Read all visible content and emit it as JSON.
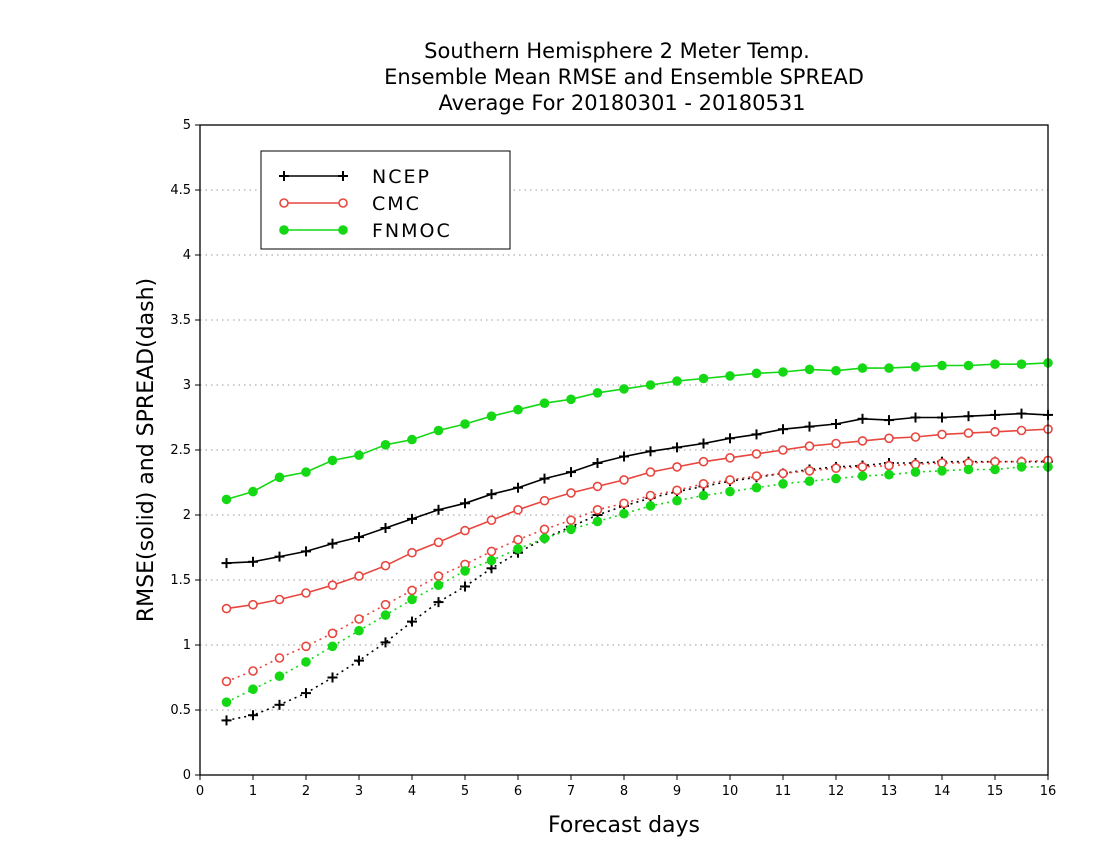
{
  "chart_data": {
    "type": "line",
    "title_lines": [
      "Southern Hemisphere 2 Meter Temp.",
      "Ensemble Mean RMSE and Ensemble SPREAD",
      "Average For 20180301 - 20180531"
    ],
    "xlabel": "Forecast days",
    "ylabel": "RMSE(solid) and SPREAD(dash)",
    "xlim": [
      0,
      16
    ],
    "ylim": [
      0,
      5
    ],
    "xticks": [
      0,
      1,
      2,
      3,
      4,
      5,
      6,
      7,
      8,
      9,
      10,
      11,
      12,
      13,
      14,
      15,
      16
    ],
    "yticks": [
      0,
      0.5,
      1,
      1.5,
      2,
      2.5,
      3,
      3.5,
      4,
      4.5,
      5
    ],
    "ytick_labels": [
      "0",
      "0.5",
      "1",
      "1.5",
      "2",
      "2.5",
      "3",
      "3.5",
      "4",
      "4.5",
      "5"
    ],
    "grid": "horizontal dotted",
    "legend_position": "top-left",
    "x": [
      0.5,
      1,
      1.5,
      2,
      2.5,
      3,
      3.5,
      4,
      4.5,
      5,
      5.5,
      6,
      6.5,
      7,
      7.5,
      8,
      8.5,
      9,
      9.5,
      10,
      10.5,
      11,
      11.5,
      12,
      12.5,
      13,
      13.5,
      14,
      14.5,
      15,
      15.5,
      16
    ],
    "series": [
      {
        "name": "NCEP",
        "color": "#000000",
        "marker": "plus",
        "rmse": [
          1.63,
          1.64,
          1.68,
          1.72,
          1.78,
          1.83,
          1.9,
          1.97,
          2.04,
          2.09,
          2.16,
          2.21,
          2.28,
          2.33,
          2.4,
          2.45,
          2.49,
          2.52,
          2.55,
          2.59,
          2.62,
          2.66,
          2.68,
          2.7,
          2.74,
          2.73,
          2.75,
          2.75,
          2.76,
          2.77,
          2.78,
          2.77
        ],
        "spread": [
          0.42,
          0.46,
          0.54,
          0.63,
          0.75,
          0.88,
          1.02,
          1.18,
          1.33,
          1.45,
          1.59,
          1.71,
          1.82,
          1.91,
          2.0,
          2.07,
          2.13,
          2.18,
          2.22,
          2.26,
          2.29,
          2.32,
          2.35,
          2.37,
          2.38,
          2.4,
          2.4,
          2.41,
          2.41,
          2.41,
          2.41,
          2.41
        ]
      },
      {
        "name": "CMC",
        "color": "#e8463e",
        "marker": "open-circle",
        "rmse": [
          1.28,
          1.31,
          1.35,
          1.4,
          1.46,
          1.53,
          1.61,
          1.71,
          1.79,
          1.88,
          1.96,
          2.04,
          2.11,
          2.17,
          2.22,
          2.27,
          2.33,
          2.37,
          2.41,
          2.44,
          2.47,
          2.5,
          2.53,
          2.55,
          2.57,
          2.59,
          2.6,
          2.62,
          2.63,
          2.64,
          2.65,
          2.66
        ],
        "spread": [
          0.72,
          0.8,
          0.9,
          0.99,
          1.09,
          1.2,
          1.31,
          1.42,
          1.53,
          1.62,
          1.72,
          1.81,
          1.89,
          1.96,
          2.04,
          2.09,
          2.15,
          2.19,
          2.24,
          2.27,
          2.3,
          2.32,
          2.34,
          2.36,
          2.37,
          2.38,
          2.39,
          2.4,
          2.4,
          2.41,
          2.41,
          2.42
        ]
      },
      {
        "name": "FNMOC",
        "color": "#14d814",
        "marker": "filled-circle",
        "rmse": [
          2.12,
          2.18,
          2.29,
          2.33,
          2.42,
          2.46,
          2.54,
          2.58,
          2.65,
          2.7,
          2.76,
          2.81,
          2.86,
          2.89,
          2.94,
          2.97,
          3.0,
          3.03,
          3.05,
          3.07,
          3.09,
          3.1,
          3.12,
          3.11,
          3.13,
          3.13,
          3.14,
          3.15,
          3.15,
          3.16,
          3.16,
          3.17
        ],
        "spread": [
          0.56,
          0.66,
          0.76,
          0.87,
          0.99,
          1.11,
          1.23,
          1.35,
          1.46,
          1.57,
          1.65,
          1.74,
          1.82,
          1.89,
          1.95,
          2.01,
          2.07,
          2.11,
          2.15,
          2.18,
          2.21,
          2.24,
          2.26,
          2.28,
          2.3,
          2.31,
          2.33,
          2.34,
          2.35,
          2.35,
          2.37,
          2.37
        ]
      }
    ]
  }
}
